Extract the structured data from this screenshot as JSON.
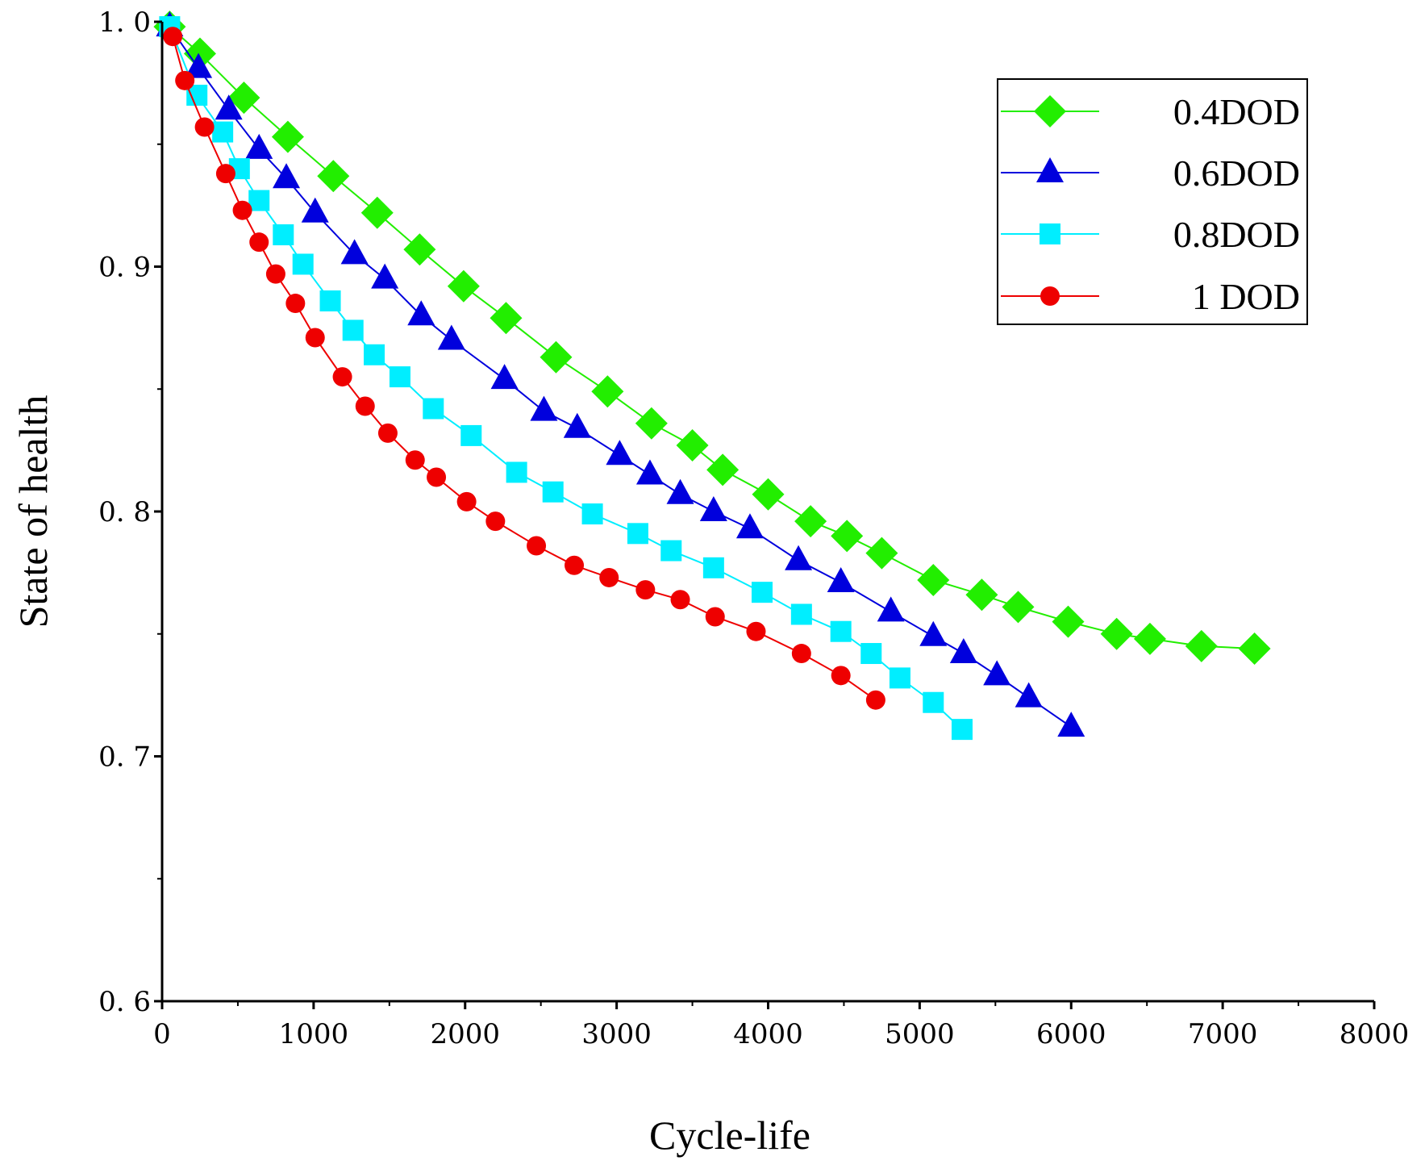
{
  "chart_data": {
    "type": "line",
    "title": "",
    "xlabel": "Cycle-life",
    "ylabel": "State of health",
    "xlim": [
      0,
      8000
    ],
    "ylim": [
      0.6,
      1.0
    ],
    "x_ticks": [
      0,
      1000,
      2000,
      3000,
      4000,
      5000,
      6000,
      7000,
      8000
    ],
    "x_tick_labels": [
      "0",
      "1000",
      "2000",
      "3000",
      "4000",
      "5000",
      "6000",
      "7000",
      "8000"
    ],
    "y_ticks": [
      0.6,
      0.7,
      0.8,
      0.9,
      1.0
    ],
    "y_tick_labels": [
      "0. 6",
      "0. 7",
      "0. 8",
      "0. 9",
      "1. 0"
    ],
    "grid": false,
    "legend_position": "top-right",
    "series": [
      {
        "name": "0.4DOD",
        "color": "#22ee00",
        "marker": "diamond",
        "x": [
          50,
          250,
          540,
          830,
          1130,
          1420,
          1700,
          1990,
          2270,
          2600,
          2940,
          3230,
          3500,
          3700,
          4000,
          4280,
          4520,
          4750,
          5090,
          5410,
          5650,
          5980,
          6300,
          6520,
          6860,
          7210
        ],
        "y": [
          0.998,
          0.987,
          0.969,
          0.953,
          0.937,
          0.922,
          0.907,
          0.892,
          0.879,
          0.863,
          0.849,
          0.836,
          0.827,
          0.817,
          0.807,
          0.796,
          0.79,
          0.783,
          0.772,
          0.766,
          0.761,
          0.755,
          0.75,
          0.748,
          0.745,
          0.744
        ]
      },
      {
        "name": "0.6DOD",
        "color": "#0000dd",
        "marker": "triangle",
        "x": [
          50,
          240,
          440,
          640,
          820,
          1010,
          1270,
          1470,
          1710,
          1910,
          2260,
          2520,
          2740,
          3020,
          3220,
          3420,
          3640,
          3880,
          4200,
          4480,
          4810,
          5090,
          5290,
          5510,
          5720,
          6000
        ],
        "y": [
          0.998,
          0.981,
          0.964,
          0.948,
          0.936,
          0.922,
          0.905,
          0.895,
          0.88,
          0.87,
          0.854,
          0.841,
          0.834,
          0.823,
          0.815,
          0.807,
          0.8,
          0.793,
          0.78,
          0.771,
          0.759,
          0.749,
          0.742,
          0.733,
          0.724,
          0.712
        ]
      },
      {
        "name": "0.8DOD",
        "color": "#00eeff",
        "marker": "square",
        "x": [
          50,
          230,
          400,
          510,
          640,
          800,
          930,
          1110,
          1260,
          1400,
          1570,
          1790,
          2040,
          2340,
          2580,
          2840,
          3140,
          3360,
          3640,
          3960,
          4220,
          4480,
          4680,
          4870,
          5090,
          5280
        ],
        "y": [
          0.998,
          0.97,
          0.955,
          0.94,
          0.927,
          0.913,
          0.901,
          0.886,
          0.874,
          0.864,
          0.855,
          0.842,
          0.831,
          0.816,
          0.808,
          0.799,
          0.791,
          0.784,
          0.777,
          0.767,
          0.758,
          0.751,
          0.742,
          0.732,
          0.722,
          0.711
        ]
      },
      {
        "name": "1 DOD",
        "color": "#ee0000",
        "marker": "circle",
        "x": [
          70,
          150,
          280,
          420,
          530,
          640,
          750,
          880,
          1010,
          1190,
          1340,
          1490,
          1670,
          1810,
          2010,
          2200,
          2470,
          2720,
          2950,
          3190,
          3420,
          3650,
          3920,
          4220,
          4480,
          4710
        ],
        "y": [
          0.994,
          0.976,
          0.957,
          0.938,
          0.923,
          0.91,
          0.897,
          0.885,
          0.871,
          0.855,
          0.843,
          0.832,
          0.821,
          0.814,
          0.804,
          0.796,
          0.786,
          0.778,
          0.773,
          0.768,
          0.764,
          0.757,
          0.751,
          0.742,
          0.733,
          0.723
        ]
      }
    ]
  }
}
